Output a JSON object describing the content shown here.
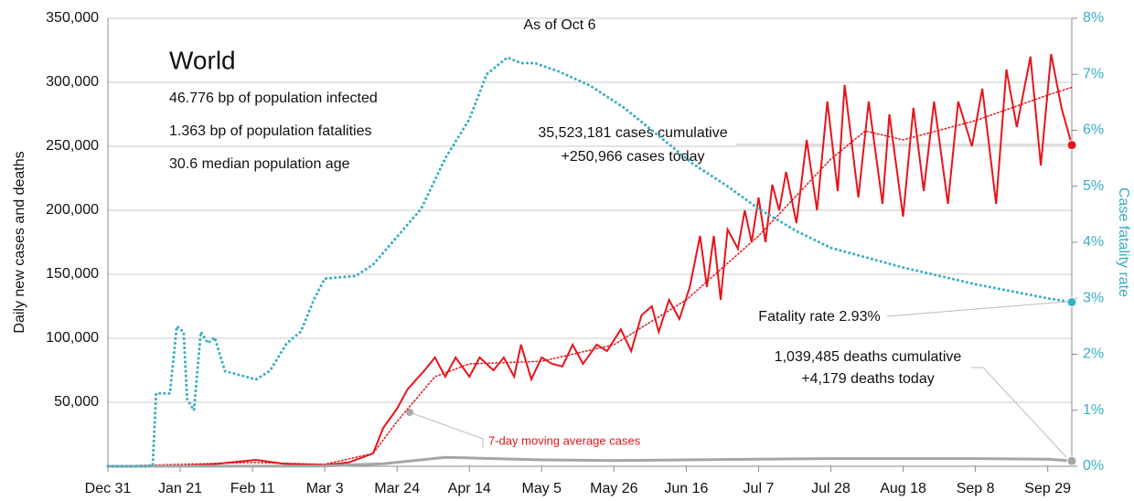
{
  "chart_data": {
    "type": "line",
    "title": "World",
    "subtitle": "As of Oct 6",
    "info": [
      "46.776 bp of population infected",
      "1.363 bp of population fatalities",
      "30.6 median population age"
    ],
    "ylabel": "Daily new cases and deaths",
    "y2label": "Case fatality rate",
    "annotations": {
      "cases": [
        "35,523,181 cases cumulative",
        "+250,966 cases today"
      ],
      "fatality": "Fatality rate 2.93%",
      "deaths": [
        "1,039,485 deaths cumulative",
        "+4,179 deaths today"
      ],
      "average": "7-day moving average cases"
    },
    "xlim": [
      0,
      280
    ],
    "xticks": [
      {
        "value": 0,
        "label": "Dec 31"
      },
      {
        "value": 21,
        "label": "Jan 21"
      },
      {
        "value": 42,
        "label": "Feb 11"
      },
      {
        "value": 63,
        "label": "Mar 3"
      },
      {
        "value": 84,
        "label": "Mar 24"
      },
      {
        "value": 105,
        "label": "Apr 14"
      },
      {
        "value": 126,
        "label": "May 5"
      },
      {
        "value": 147,
        "label": "May 26"
      },
      {
        "value": 168,
        "label": "Jun 16"
      },
      {
        "value": 189,
        "label": "Jul 7"
      },
      {
        "value": 210,
        "label": "Jul 28"
      },
      {
        "value": 231,
        "label": "Aug 18"
      },
      {
        "value": 252,
        "label": "Sep 8"
      },
      {
        "value": 273,
        "label": "Sep 29"
      }
    ],
    "ylim": [
      0,
      350000
    ],
    "yticks": [
      {
        "value": 50000,
        "label": "50,000"
      },
      {
        "value": 100000,
        "label": "100,000"
      },
      {
        "value": 150000,
        "label": "150,000"
      },
      {
        "value": 200000,
        "label": "200,000"
      },
      {
        "value": 250000,
        "label": "250,000"
      },
      {
        "value": 300000,
        "label": "300,000"
      },
      {
        "value": 350000,
        "label": "350,000"
      }
    ],
    "y2lim": [
      0,
      8
    ],
    "y2ticks": [
      {
        "value": 0,
        "label": "0%"
      },
      {
        "value": 1,
        "label": "1%"
      },
      {
        "value": 2,
        "label": "2%"
      },
      {
        "value": 3,
        "label": "3%"
      },
      {
        "value": 4,
        "label": "4%"
      },
      {
        "value": 5,
        "label": "5%"
      },
      {
        "value": 6,
        "label": "6%"
      },
      {
        "value": 7,
        "label": "7%"
      },
      {
        "value": 8,
        "label": "8%"
      }
    ],
    "grid": true,
    "series": [
      {
        "name": "cases",
        "color": "#e8141b",
        "dash": "solid",
        "endpoint": true,
        "x": [
          0,
          10,
          21,
          32,
          43,
          51,
          63,
          70,
          77,
          80,
          84,
          87,
          92,
          95,
          98,
          101,
          105,
          108,
          112,
          115,
          118,
          120,
          123,
          126,
          129,
          132,
          135,
          138,
          142,
          145,
          149,
          152,
          155,
          158,
          160,
          163,
          166,
          169,
          172,
          174,
          176,
          178,
          180,
          183,
          185,
          187,
          189,
          191,
          193,
          195,
          197,
          200,
          203,
          206,
          209,
          212,
          214,
          218,
          221,
          225,
          227,
          231,
          234,
          237,
          240,
          244,
          247,
          251,
          254,
          258,
          261,
          264,
          268,
          271,
          274,
          277,
          280
        ],
        "values": [
          0,
          0,
          200,
          2000,
          5000,
          2000,
          1000,
          3000,
          10000,
          30000,
          45000,
          60000,
          75000,
          85000,
          70000,
          85000,
          70000,
          85000,
          75000,
          85000,
          70000,
          95000,
          68000,
          85000,
          80000,
          78000,
          95000,
          80000,
          95000,
          90000,
          107000,
          90000,
          118000,
          125000,
          105000,
          130000,
          115000,
          140000,
          180000,
          140000,
          180000,
          130000,
          185000,
          170000,
          200000,
          175000,
          210000,
          175000,
          220000,
          200000,
          230000,
          190000,
          255000,
          200000,
          285000,
          215000,
          298000,
          210000,
          285000,
          205000,
          275000,
          195000,
          280000,
          215000,
          285000,
          205000,
          285000,
          250000,
          295000,
          205000,
          310000,
          265000,
          320000,
          235000,
          322000,
          280000,
          250966
        ]
      },
      {
        "name": "7-day moving average cases",
        "color": "#e8141b",
        "dash": "dotted",
        "endpoint": false,
        "x": [
          0,
          42,
          63,
          77,
          84,
          95,
          105,
          126,
          147,
          168,
          189,
          210,
          220,
          231,
          252,
          273,
          280
        ],
        "values": [
          0,
          3000,
          1500,
          10000,
          35000,
          70000,
          80000,
          82000,
          95000,
          130000,
          180000,
          240000,
          262000,
          255000,
          270000,
          290000,
          296000
        ]
      },
      {
        "name": "deaths",
        "color": "#a6a6a6",
        "dash": "solid",
        "endpoint": true,
        "x": [
          0,
          63,
          80,
          98,
          112,
          126,
          147,
          168,
          189,
          210,
          231,
          252,
          273,
          280
        ],
        "values": [
          0,
          200,
          2000,
          7000,
          6000,
          5000,
          4500,
          5000,
          5500,
          6000,
          6000,
          6000,
          5500,
          4179
        ]
      },
      {
        "name": "fatality rate",
        "color": "#3aaec4",
        "dash": "dotted",
        "axis": "y2",
        "endpoint": true,
        "x": [
          0,
          13,
          14,
          18,
          20,
          22,
          23,
          25,
          27,
          29,
          31,
          34,
          40,
          43,
          47,
          52,
          56,
          60,
          63,
          72,
          77,
          84,
          91,
          98,
          105,
          110,
          116,
          120,
          124,
          131,
          140,
          150,
          160,
          170,
          180,
          189,
          200,
          210,
          231,
          252,
          273,
          280
        ],
        "values": [
          0,
          0,
          1.3,
          1.3,
          2.5,
          2.4,
          1.2,
          1.0,
          2.4,
          2.2,
          2.3,
          1.7,
          1.6,
          1.55,
          1.7,
          2.2,
          2.4,
          3.0,
          3.35,
          3.4,
          3.6,
          4.1,
          4.6,
          5.5,
          6.2,
          7.0,
          7.3,
          7.2,
          7.2,
          7.05,
          6.8,
          6.4,
          5.9,
          5.4,
          5.0,
          4.6,
          4.2,
          3.9,
          3.55,
          3.25,
          3.0,
          2.93
        ]
      }
    ]
  }
}
